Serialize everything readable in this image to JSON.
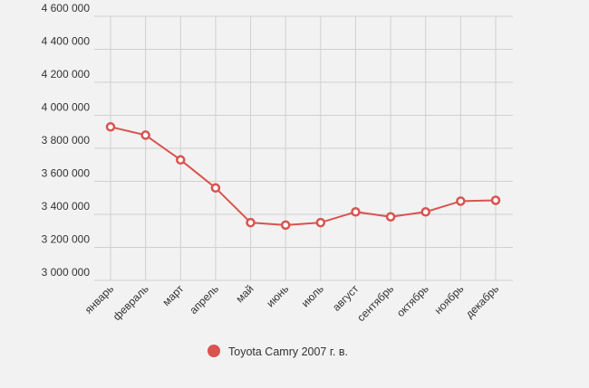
{
  "chart_data": {
    "type": "line",
    "categories": [
      "январь",
      "февраль",
      "март",
      "апрель",
      "май",
      "июнь",
      "июль",
      "август",
      "сентябрь",
      "октябрь",
      "ноябрь",
      "декабрь"
    ],
    "series": [
      {
        "name": "Toyota Camry 2007 г. в.",
        "values": [
          3930000,
          3880000,
          3730000,
          3560000,
          3350000,
          3335000,
          3350000,
          3415000,
          3385000,
          3415000,
          3480000,
          3485000
        ],
        "color": "#d9534f"
      }
    ],
    "ylim": [
      3000000,
      4600000
    ],
    "yticks": [
      3000000,
      3200000,
      3400000,
      3600000,
      3800000,
      4000000,
      4200000,
      4400000,
      4600000
    ],
    "ytick_labels": [
      "3 000 000",
      "3 200 000",
      "3 400 000",
      "3 600 000",
      "3 800 000",
      "4 000 000",
      "4 200 000",
      "4 400 000",
      "4 600 000"
    ],
    "grid": true,
    "legend_position": "bottom",
    "xlabel": "",
    "ylabel": "",
    "title": ""
  },
  "colors": {
    "background": "#f2f2f2",
    "grid": "#d0d0d0",
    "axis_text": "#333333",
    "series_line": "#d9534f",
    "marker_fill": "#ffffff"
  }
}
